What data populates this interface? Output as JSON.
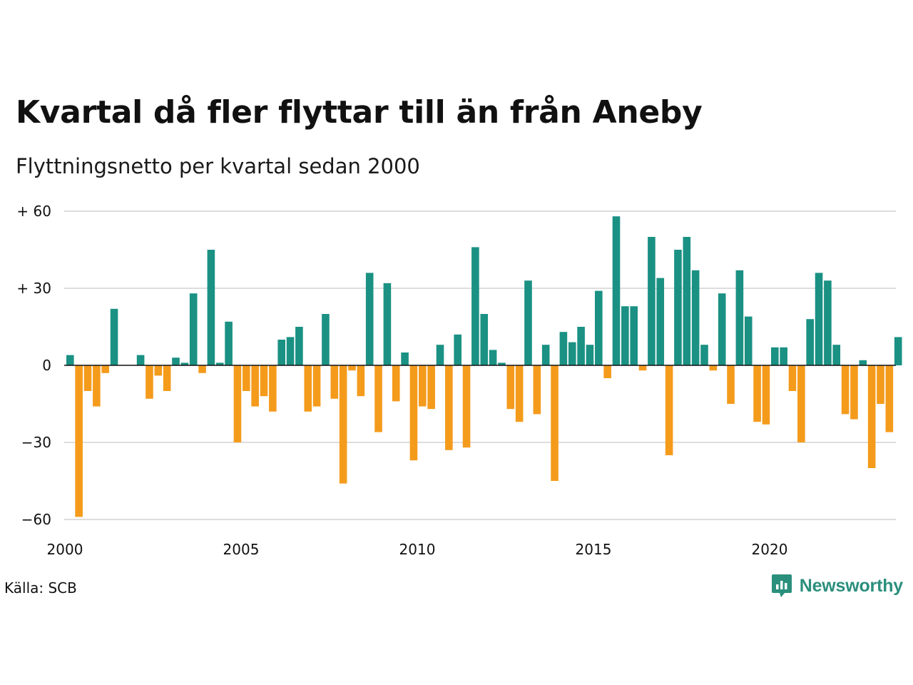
{
  "header": {
    "title": "Kvartal då fler flyttar till än från Aneby",
    "subtitle": "Flyttningsnetto per kvartal sedan 2000"
  },
  "footer": {
    "source": "Källa: SCB",
    "brand": "Newsworthy",
    "brand_icon": "chart-bubble-icon"
  },
  "colors": {
    "positive": "#1a9183",
    "negative": "#f49b1c",
    "grid": "#dddddd",
    "brand": "#2b8f7d"
  },
  "chart_data": {
    "type": "bar",
    "title": "Kvartal då fler flyttar till än från Aneby",
    "subtitle": "Flyttningsnetto per kvartal sedan 2000",
    "x_unit": "quarter",
    "x_start": "2000 Q1",
    "ylim": [
      -60,
      60
    ],
    "yticks": [
      60,
      30,
      0,
      -30,
      -60
    ],
    "ytick_labels": [
      "+ 60",
      "+ 30",
      "0",
      "−30",
      "−60"
    ],
    "xticks": [
      "2000",
      "2005",
      "2010",
      "2015",
      "2020"
    ],
    "grid": true,
    "legend": "none",
    "categories": [
      "2000 Q1",
      "2000 Q2",
      "2000 Q3",
      "2000 Q4",
      "2001 Q1",
      "2001 Q2",
      "2001 Q3",
      "2001 Q4",
      "2002 Q1",
      "2002 Q2",
      "2002 Q3",
      "2002 Q4",
      "2003 Q1",
      "2003 Q2",
      "2003 Q3",
      "2003 Q4",
      "2004 Q1",
      "2004 Q2",
      "2004 Q3",
      "2004 Q4",
      "2005 Q1",
      "2005 Q2",
      "2005 Q3",
      "2005 Q4",
      "2006 Q1",
      "2006 Q2",
      "2006 Q3",
      "2006 Q4",
      "2007 Q1",
      "2007 Q2",
      "2007 Q3",
      "2007 Q4",
      "2008 Q1",
      "2008 Q2",
      "2008 Q3",
      "2008 Q4",
      "2009 Q1",
      "2009 Q2",
      "2009 Q3",
      "2009 Q4",
      "2010 Q1",
      "2010 Q2",
      "2010 Q3",
      "2010 Q4",
      "2011 Q1",
      "2011 Q2",
      "2011 Q3",
      "2011 Q4",
      "2012 Q1",
      "2012 Q2",
      "2012 Q3",
      "2012 Q4",
      "2013 Q1",
      "2013 Q2",
      "2013 Q3",
      "2013 Q4",
      "2014 Q1",
      "2014 Q2",
      "2014 Q3",
      "2014 Q4",
      "2015 Q1",
      "2015 Q2",
      "2015 Q3",
      "2015 Q4",
      "2016 Q1",
      "2016 Q2",
      "2016 Q3",
      "2016 Q4",
      "2017 Q1",
      "2017 Q2",
      "2017 Q3",
      "2017 Q4",
      "2018 Q1",
      "2018 Q2",
      "2018 Q3",
      "2018 Q4",
      "2019 Q1",
      "2019 Q2",
      "2019 Q3",
      "2019 Q4",
      "2020 Q1",
      "2020 Q2",
      "2020 Q3",
      "2020 Q4",
      "2021 Q1",
      "2021 Q2",
      "2021 Q3",
      "2021 Q4",
      "2022 Q1",
      "2022 Q2",
      "2022 Q3",
      "2022 Q4",
      "2023 Q1",
      "2023 Q2",
      "2023 Q3",
      "2023 Q4"
    ],
    "values": [
      4,
      -59,
      -10,
      -16,
      -3,
      22,
      0,
      0,
      4,
      -13,
      -4,
      -10,
      3,
      1,
      28,
      -3,
      45,
      1,
      17,
      -30,
      -10,
      -16,
      -12,
      -18,
      10,
      11,
      15,
      -18,
      -16,
      20,
      -13,
      -46,
      -2,
      -12,
      36,
      -26,
      32,
      -14,
      5,
      -37,
      -16,
      -17,
      8,
      -33,
      12,
      -32,
      46,
      20,
      6,
      1,
      -17,
      -22,
      33,
      -19,
      8,
      -45,
      13,
      9,
      15,
      8,
      29,
      -5,
      58,
      23,
      23,
      -2,
      50,
      34,
      -35,
      45,
      50,
      37,
      8,
      -2,
      28,
      -15,
      37,
      19,
      -22,
      -23,
      7,
      7,
      -10,
      -30,
      18,
      36,
      33,
      8,
      -19,
      -21,
      2,
      -40,
      -15,
      -26,
      11,
      0
    ]
  }
}
